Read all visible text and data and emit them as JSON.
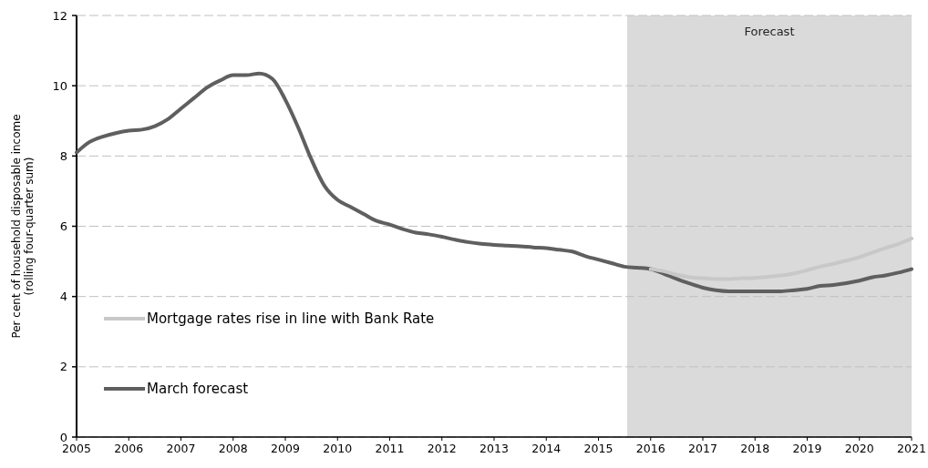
{
  "chart_data": {
    "type": "line",
    "ylabel": "Per cent of household disposable income\n(rolling four-quarter sum)",
    "xlim": [
      2005,
      2021
    ],
    "xticks": [
      2005,
      2006,
      2007,
      2008,
      2009,
      2010,
      2011,
      2012,
      2013,
      2014,
      2015,
      2016,
      2017,
      2018,
      2019,
      2020,
      2021
    ],
    "ylim": [
      0,
      12
    ],
    "yticks": [
      0,
      2,
      4,
      6,
      8,
      10,
      12
    ],
    "grid": "y",
    "legend": "bottom left",
    "line_style": "solid",
    "marker": "none",
    "bands": [
      {
        "axis": "x",
        "from": 2015.55,
        "to": 2021,
        "label": "Forecast",
        "color": "#dadada"
      }
    ],
    "series": [
      {
        "name": "Mortgage rates rise in line with Bank Rate",
        "color": "#c8c8c8",
        "x": [
          2016,
          2016.25,
          2016.5,
          2016.75,
          2017,
          2017.25,
          2017.5,
          2017.75,
          2018,
          2018.25,
          2018.5,
          2018.75,
          2019,
          2019.25,
          2019.5,
          2019.75,
          2020,
          2020.25,
          2020.5,
          2020.75,
          2021
        ],
        "values": [
          4.78,
          4.72,
          4.62,
          4.55,
          4.52,
          4.5,
          4.5,
          4.52,
          4.53,
          4.56,
          4.6,
          4.66,
          4.75,
          4.85,
          4.93,
          5.02,
          5.12,
          5.25,
          5.38,
          5.5,
          5.65
        ]
      },
      {
        "name": "March forecast",
        "color": "#5f5f5f",
        "x": [
          2005,
          2005.25,
          2005.5,
          2005.75,
          2006,
          2006.25,
          2006.5,
          2006.75,
          2007,
          2007.25,
          2007.5,
          2007.75,
          2008,
          2008.25,
          2008.5,
          2008.75,
          2009,
          2009.25,
          2009.5,
          2009.75,
          2010,
          2010.25,
          2010.5,
          2010.75,
          2011,
          2011.25,
          2011.5,
          2011.75,
          2012,
          2012.25,
          2012.5,
          2012.75,
          2013,
          2013.25,
          2013.5,
          2013.75,
          2014,
          2014.25,
          2014.5,
          2014.75,
          2015,
          2015.25,
          2015.5,
          2015.75,
          2016,
          2016.25,
          2016.5,
          2016.75,
          2017,
          2017.25,
          2017.5,
          2017.75,
          2018,
          2018.25,
          2018.5,
          2018.75,
          2019,
          2019.25,
          2019.5,
          2019.75,
          2020,
          2020.25,
          2020.5,
          2020.75,
          2021
        ],
        "values": [
          8.1,
          8.4,
          8.55,
          8.65,
          8.72,
          8.75,
          8.85,
          9.05,
          9.35,
          9.65,
          9.95,
          10.15,
          10.3,
          10.3,
          10.35,
          10.2,
          9.6,
          8.8,
          7.9,
          7.15,
          6.75,
          6.55,
          6.35,
          6.15,
          6.05,
          5.92,
          5.82,
          5.77,
          5.7,
          5.62,
          5.55,
          5.5,
          5.47,
          5.45,
          5.43,
          5.4,
          5.38,
          5.33,
          5.28,
          5.15,
          5.05,
          4.95,
          4.85,
          4.82,
          4.78,
          4.65,
          4.5,
          4.37,
          4.25,
          4.18,
          4.15,
          4.15,
          4.15,
          4.15,
          4.15,
          4.18,
          4.22,
          4.3,
          4.33,
          4.38,
          4.45,
          4.55,
          4.6,
          4.68,
          4.78
        ]
      }
    ]
  }
}
